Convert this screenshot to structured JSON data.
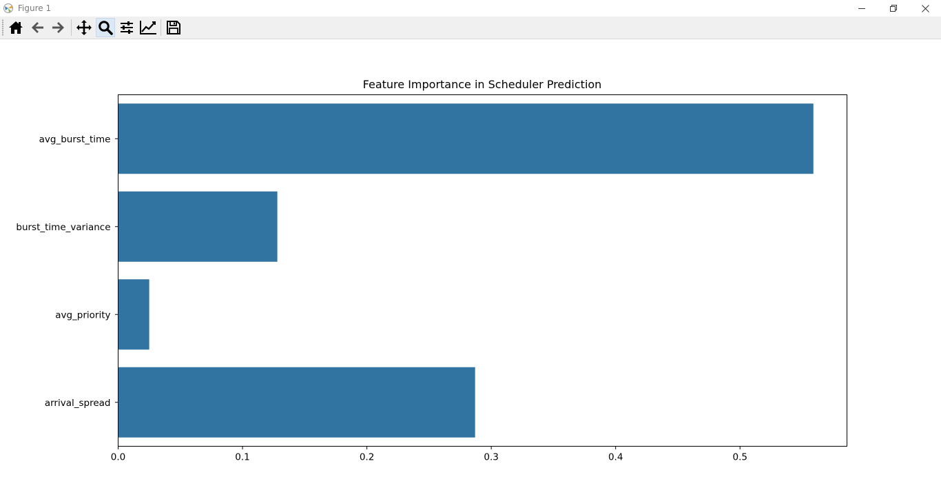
{
  "window": {
    "title": "Figure 1"
  },
  "toolbar": {
    "buttons": [
      {
        "name": "home-button",
        "icon": "home-icon"
      },
      {
        "name": "back-button",
        "icon": "arrow-left-icon"
      },
      {
        "name": "forward-button",
        "icon": "arrow-right-icon"
      },
      {
        "name": "pan-button",
        "icon": "move-icon"
      },
      {
        "name": "zoom-button",
        "icon": "magnifier-icon",
        "active": true
      },
      {
        "name": "configure-subplots-button",
        "icon": "sliders-icon"
      },
      {
        "name": "edit-axis-button",
        "icon": "line-chart-icon"
      },
      {
        "name": "save-button",
        "icon": "floppy-disk-icon"
      }
    ]
  },
  "chart_data": {
    "type": "bar",
    "orientation": "horizontal",
    "title": "Feature Importance in Scheduler Prediction",
    "xlabel": "",
    "ylabel": "",
    "categories": [
      "avg_burst_time",
      "burst_time_variance",
      "avg_priority",
      "arrival_spread"
    ],
    "values": [
      0.559,
      0.128,
      0.025,
      0.287
    ],
    "xlim": [
      0,
      0.586
    ],
    "xticks": [
      0.0,
      0.1,
      0.2,
      0.3,
      0.4,
      0.5
    ],
    "xtick_labels": [
      "0.0",
      "0.1",
      "0.2",
      "0.3",
      "0.4",
      "0.5"
    ],
    "grid": false,
    "bar_color": "#3274a1"
  }
}
